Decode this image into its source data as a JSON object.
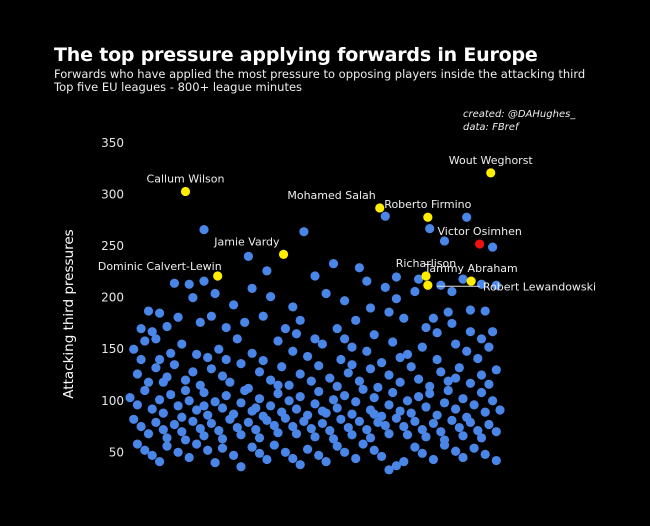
{
  "header": {
    "title": "The top pressure applying forwards in Europe",
    "subtitle_1": "Forwards who have applied the most pressure to opposing players inside the attacking third",
    "subtitle_2": "Top five EU leagues - 800+ league minutes",
    "credit_1": "created: @DAHughes_",
    "credit_2": "data: FBref"
  },
  "chart_data": {
    "type": "scatter",
    "title": "The top pressure applying forwards in Europe",
    "xlabel": "",
    "ylabel": "Attacking third pressures",
    "x_axis": "jittered (no scale shown); x values are normalized 0-1 horizontal positions",
    "xlim": [
      0,
      1
    ],
    "ylim": [
      30,
      360
    ],
    "yticks": [
      50,
      100,
      150,
      200,
      250,
      300,
      350
    ],
    "grid": false,
    "colors": {
      "background": "#000000",
      "default": "#4a86e8",
      "highlight": "#ffee00",
      "special": "#ee1111"
    },
    "highlighted": [
      {
        "name": "Callum Wilson",
        "x": 0.15,
        "y": 303,
        "color": "highlight",
        "label_pos": "above"
      },
      {
        "name": "Mohamed Salah",
        "x": 0.675,
        "y": 287,
        "color": "highlight",
        "label_pos": "above-left"
      },
      {
        "name": "Roberto Firmino",
        "x": 0.805,
        "y": 278,
        "color": "highlight",
        "label_pos": "above"
      },
      {
        "name": "Wout Weghorst",
        "x": 0.975,
        "y": 321,
        "color": "highlight",
        "label_pos": "above"
      },
      {
        "name": "Victor Osimhen",
        "x": 0.945,
        "y": 252,
        "color": "special",
        "label_pos": "above"
      },
      {
        "name": "Jamie Vardy",
        "x": 0.415,
        "y": 242,
        "color": "highlight",
        "label_pos": "above-left"
      },
      {
        "name": "Dominic Calvert-Lewin",
        "x": 0.237,
        "y": 221,
        "color": "highlight",
        "label_pos": "left"
      },
      {
        "name": "Richarlison",
        "x": 0.8,
        "y": 221,
        "color": "highlight",
        "label_pos": "above"
      },
      {
        "name": "Robert Lewandowski",
        "x": 0.805,
        "y": 212,
        "color": "highlight",
        "label_pos": "right-leader"
      },
      {
        "name": "Tammy Abraham",
        "x": 0.922,
        "y": 216,
        "color": "highlight",
        "label_pos": "above"
      }
    ],
    "others": [
      [
        0.2,
        266
      ],
      [
        0.47,
        264
      ],
      [
        0.69,
        279
      ],
      [
        0.91,
        278
      ],
      [
        0.81,
        267
      ],
      [
        0.98,
        249
      ],
      [
        0.32,
        240
      ],
      [
        0.85,
        255
      ],
      [
        0.62,
        229
      ],
      [
        0.55,
        233
      ],
      [
        0.37,
        226
      ],
      [
        0.5,
        221
      ],
      [
        0.64,
        216
      ],
      [
        0.16,
        213
      ],
      [
        0.2,
        216
      ],
      [
        0.12,
        214
      ],
      [
        0.69,
        210
      ],
      [
        0.72,
        220
      ],
      [
        0.78,
        218
      ],
      [
        0.84,
        212
      ],
      [
        0.87,
        206
      ],
      [
        0.9,
        218
      ],
      [
        0.95,
        213
      ],
      [
        0.99,
        212
      ],
      [
        0.05,
        187
      ],
      [
        0.08,
        185
      ],
      [
        0.17,
        200
      ],
      [
        0.23,
        204
      ],
      [
        0.28,
        193
      ],
      [
        0.33,
        209
      ],
      [
        0.38,
        201
      ],
      [
        0.44,
        191
      ],
      [
        0.53,
        204
      ],
      [
        0.58,
        197
      ],
      [
        0.65,
        190
      ],
      [
        0.72,
        199
      ],
      [
        0.77,
        206
      ],
      [
        0.86,
        186
      ],
      [
        0.92,
        188
      ],
      [
        0.96,
        187
      ],
      [
        0.03,
        170
      ],
      [
        0.06,
        167
      ],
      [
        0.1,
        172
      ],
      [
        0.13,
        181
      ],
      [
        0.19,
        176
      ],
      [
        0.22,
        182
      ],
      [
        0.26,
        171
      ],
      [
        0.31,
        176
      ],
      [
        0.36,
        182
      ],
      [
        0.42,
        170
      ],
      [
        0.46,
        178
      ],
      [
        0.5,
        160
      ],
      [
        0.56,
        170
      ],
      [
        0.61,
        178
      ],
      [
        0.66,
        164
      ],
      [
        0.7,
        186
      ],
      [
        0.74,
        180
      ],
      [
        0.8,
        171
      ],
      [
        0.83,
        166
      ],
      [
        0.87,
        175
      ],
      [
        0.92,
        167
      ],
      [
        0.95,
        160
      ],
      [
        0.98,
        167
      ],
      [
        0.01,
        150
      ],
      [
        0.04,
        158
      ],
      [
        0.08,
        140
      ],
      [
        0.11,
        146
      ],
      [
        0.14,
        155
      ],
      [
        0.18,
        145
      ],
      [
        0.21,
        142
      ],
      [
        0.24,
        150
      ],
      [
        0.29,
        160
      ],
      [
        0.33,
        146
      ],
      [
        0.36,
        139
      ],
      [
        0.4,
        158
      ],
      [
        0.44,
        148
      ],
      [
        0.48,
        143
      ],
      [
        0.52,
        155
      ],
      [
        0.57,
        140
      ],
      [
        0.6,
        152
      ],
      [
        0.64,
        148
      ],
      [
        0.68,
        137
      ],
      [
        0.71,
        157
      ],
      [
        0.75,
        145
      ],
      [
        0.79,
        152
      ],
      [
        0.83,
        140
      ],
      [
        0.88,
        155
      ],
      [
        0.91,
        148
      ],
      [
        0.94,
        141
      ],
      [
        0.97,
        152
      ],
      [
        0.99,
        130
      ],
      [
        0.02,
        126
      ],
      [
        0.05,
        118
      ],
      [
        0.07,
        132
      ],
      [
        0.1,
        123
      ],
      [
        0.12,
        135
      ],
      [
        0.15,
        120
      ],
      [
        0.17,
        128
      ],
      [
        0.19,
        115
      ],
      [
        0.22,
        131
      ],
      [
        0.25,
        124
      ],
      [
        0.27,
        118
      ],
      [
        0.3,
        136
      ],
      [
        0.32,
        112
      ],
      [
        0.35,
        128
      ],
      [
        0.38,
        120
      ],
      [
        0.41,
        133
      ],
      [
        0.43,
        115
      ],
      [
        0.46,
        126
      ],
      [
        0.49,
        119
      ],
      [
        0.51,
        134
      ],
      [
        0.54,
        122
      ],
      [
        0.56,
        114
      ],
      [
        0.59,
        127
      ],
      [
        0.62,
        119
      ],
      [
        0.65,
        131
      ],
      [
        0.67,
        113
      ],
      [
        0.7,
        125
      ],
      [
        0.73,
        118
      ],
      [
        0.76,
        133
      ],
      [
        0.78,
        121
      ],
      [
        0.81,
        114
      ],
      [
        0.84,
        128
      ],
      [
        0.86,
        119
      ],
      [
        0.89,
        132
      ],
      [
        0.92,
        117
      ],
      [
        0.95,
        125
      ],
      [
        0.97,
        116
      ],
      [
        0.0,
        103
      ],
      [
        0.02,
        96
      ],
      [
        0.04,
        110
      ],
      [
        0.06,
        92
      ],
      [
        0.08,
        101
      ],
      [
        0.09,
        88
      ],
      [
        0.11,
        106
      ],
      [
        0.13,
        95
      ],
      [
        0.14,
        84
      ],
      [
        0.16,
        100
      ],
      [
        0.18,
        91
      ],
      [
        0.2,
        108
      ],
      [
        0.21,
        86
      ],
      [
        0.23,
        99
      ],
      [
        0.25,
        93
      ],
      [
        0.26,
        105
      ],
      [
        0.28,
        87
      ],
      [
        0.3,
        98
      ],
      [
        0.31,
        110
      ],
      [
        0.33,
        90
      ],
      [
        0.35,
        102
      ],
      [
        0.36,
        85
      ],
      [
        0.38,
        95
      ],
      [
        0.4,
        107
      ],
      [
        0.41,
        89
      ],
      [
        0.43,
        100
      ],
      [
        0.45,
        92
      ],
      [
        0.46,
        104
      ],
      [
        0.48,
        86
      ],
      [
        0.5,
        97
      ],
      [
        0.51,
        109
      ],
      [
        0.53,
        88
      ],
      [
        0.55,
        101
      ],
      [
        0.56,
        93
      ],
      [
        0.58,
        105
      ],
      [
        0.6,
        87
      ],
      [
        0.61,
        99
      ],
      [
        0.63,
        111
      ],
      [
        0.65,
        91
      ],
      [
        0.66,
        103
      ],
      [
        0.68,
        85
      ],
      [
        0.7,
        96
      ],
      [
        0.71,
        108
      ],
      [
        0.73,
        90
      ],
      [
        0.75,
        100
      ],
      [
        0.76,
        88
      ],
      [
        0.78,
        104
      ],
      [
        0.8,
        94
      ],
      [
        0.81,
        107
      ],
      [
        0.83,
        86
      ],
      [
        0.85,
        98
      ],
      [
        0.86,
        110
      ],
      [
        0.88,
        92
      ],
      [
        0.9,
        102
      ],
      [
        0.91,
        84
      ],
      [
        0.93,
        96
      ],
      [
        0.95,
        108
      ],
      [
        0.96,
        89
      ],
      [
        0.98,
        100
      ],
      [
        1.0,
        91
      ],
      [
        0.01,
        82
      ],
      [
        0.03,
        75
      ],
      [
        0.05,
        68
      ],
      [
        0.07,
        79
      ],
      [
        0.09,
        72
      ],
      [
        0.1,
        64
      ],
      [
        0.12,
        77
      ],
      [
        0.14,
        70
      ],
      [
        0.15,
        62
      ],
      [
        0.17,
        80
      ],
      [
        0.19,
        73
      ],
      [
        0.2,
        66
      ],
      [
        0.22,
        78
      ],
      [
        0.24,
        71
      ],
      [
        0.25,
        63
      ],
      [
        0.27,
        82
      ],
      [
        0.29,
        74
      ],
      [
        0.3,
        67
      ],
      [
        0.32,
        79
      ],
      [
        0.34,
        72
      ],
      [
        0.35,
        64
      ],
      [
        0.37,
        81
      ],
      [
        0.39,
        76
      ],
      [
        0.4,
        69
      ],
      [
        0.42,
        83
      ],
      [
        0.44,
        75
      ],
      [
        0.45,
        68
      ],
      [
        0.47,
        80
      ],
      [
        0.49,
        73
      ],
      [
        0.5,
        65
      ],
      [
        0.52,
        78
      ],
      [
        0.54,
        71
      ],
      [
        0.55,
        63
      ],
      [
        0.57,
        82
      ],
      [
        0.59,
        74
      ],
      [
        0.6,
        67
      ],
      [
        0.62,
        80
      ],
      [
        0.64,
        72
      ],
      [
        0.65,
        64
      ],
      [
        0.67,
        79
      ],
      [
        0.69,
        76
      ],
      [
        0.7,
        68
      ],
      [
        0.72,
        83
      ],
      [
        0.74,
        75
      ],
      [
        0.75,
        67
      ],
      [
        0.77,
        80
      ],
      [
        0.79,
        72
      ],
      [
        0.8,
        65
      ],
      [
        0.82,
        78
      ],
      [
        0.84,
        70
      ],
      [
        0.85,
        62
      ],
      [
        0.87,
        81
      ],
      [
        0.89,
        74
      ],
      [
        0.9,
        66
      ],
      [
        0.92,
        79
      ],
      [
        0.94,
        71
      ],
      [
        0.95,
        64
      ],
      [
        0.97,
        77
      ],
      [
        0.99,
        70
      ],
      [
        0.02,
        58
      ],
      [
        0.04,
        52
      ],
      [
        0.06,
        47
      ],
      [
        0.08,
        41
      ],
      [
        0.1,
        56
      ],
      [
        0.13,
        50
      ],
      [
        0.16,
        45
      ],
      [
        0.18,
        58
      ],
      [
        0.21,
        52
      ],
      [
        0.23,
        40
      ],
      [
        0.25,
        54
      ],
      [
        0.28,
        47
      ],
      [
        0.3,
        36
      ],
      [
        0.33,
        55
      ],
      [
        0.35,
        49
      ],
      [
        0.37,
        43
      ],
      [
        0.39,
        57
      ],
      [
        0.42,
        50
      ],
      [
        0.44,
        44
      ],
      [
        0.46,
        38
      ],
      [
        0.48,
        53
      ],
      [
        0.51,
        47
      ],
      [
        0.53,
        41
      ],
      [
        0.56,
        56
      ],
      [
        0.58,
        50
      ],
      [
        0.61,
        44
      ],
      [
        0.63,
        58
      ],
      [
        0.66,
        52
      ],
      [
        0.68,
        46
      ],
      [
        0.7,
        33
      ],
      [
        0.72,
        37
      ],
      [
        0.74,
        41
      ],
      [
        0.77,
        55
      ],
      [
        0.79,
        49
      ],
      [
        0.82,
        43
      ],
      [
        0.85,
        57
      ],
      [
        0.88,
        51
      ],
      [
        0.9,
        45
      ],
      [
        0.93,
        54
      ],
      [
        0.96,
        48
      ],
      [
        0.99,
        42
      ],
      [
        0.03,
        140
      ],
      [
        0.07,
        160
      ],
      [
        0.26,
        140
      ],
      [
        0.58,
        160
      ],
      [
        0.82,
        180
      ],
      [
        0.45,
        165
      ],
      [
        0.09,
        118
      ],
      [
        0.6,
        135
      ],
      [
        0.73,
        142
      ],
      [
        0.4,
        115
      ],
      [
        0.15,
        110
      ],
      [
        0.88,
        122
      ],
      [
        0.52,
        90
      ],
      [
        0.34,
        93
      ],
      [
        0.66,
        87
      ],
      [
        0.2,
        95
      ]
    ]
  }
}
